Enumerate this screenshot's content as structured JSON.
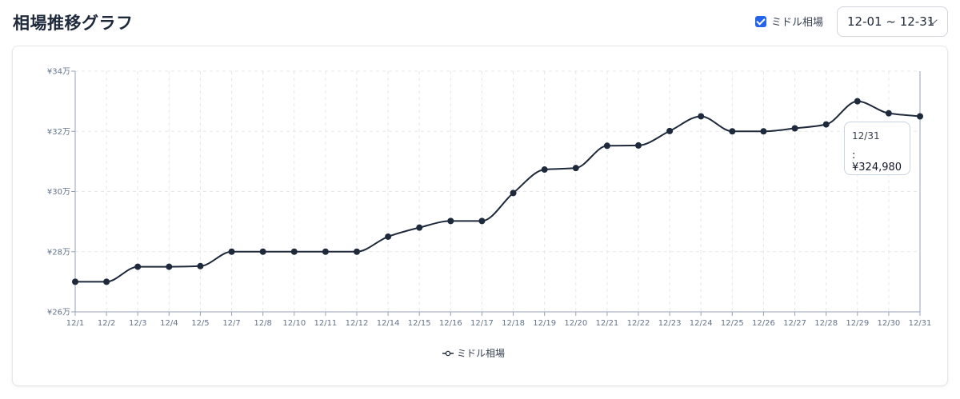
{
  "header": {
    "title": "相場推移グラフ",
    "toggle_label": "ミドル相場",
    "toggle_checked": true,
    "date_range": "12-01 ~ 12-31"
  },
  "tooltip": {
    "title": "12/31",
    "value": ": ¥324,980"
  },
  "legend": {
    "label": "ミドル相場"
  },
  "colors": {
    "line": "#1e293b",
    "grid": "#e5e7eb",
    "axis": "#94a3b8",
    "accent": "#2563eb"
  },
  "chart_data": {
    "type": "line",
    "title": "相場推移グラフ",
    "xlabel": "",
    "ylabel": "",
    "grid": true,
    "legend_position": "bottom",
    "ylim": [
      260000,
      340000
    ],
    "y_ticks": [
      {
        "value": 260000,
        "label": "¥26万"
      },
      {
        "value": 280000,
        "label": "¥28万"
      },
      {
        "value": 300000,
        "label": "¥30万"
      },
      {
        "value": 320000,
        "label": "¥32万"
      },
      {
        "value": 340000,
        "label": "¥34万"
      }
    ],
    "x": [
      "12/1",
      "12/2",
      "12/3",
      "12/4",
      "12/5",
      "12/7",
      "12/8",
      "12/10",
      "12/11",
      "12/12",
      "12/14",
      "12/15",
      "12/16",
      "12/17",
      "12/18",
      "12/19",
      "12/20",
      "12/21",
      "12/22",
      "12/23",
      "12/24",
      "12/25",
      "12/26",
      "12/27",
      "12/28",
      "12/29",
      "12/30",
      "12/31"
    ],
    "series": [
      {
        "name": "ミドル相場",
        "values": [
          270000,
          270000,
          275000,
          275000,
          275200,
          280000,
          280000,
          280000,
          280000,
          280000,
          285000,
          288000,
          290200,
          290200,
          299500,
          307300,
          307800,
          315200,
          315300,
          320100,
          325000,
          320000,
          320000,
          321000,
          322300,
          330000,
          326000,
          324980
        ]
      }
    ]
  }
}
